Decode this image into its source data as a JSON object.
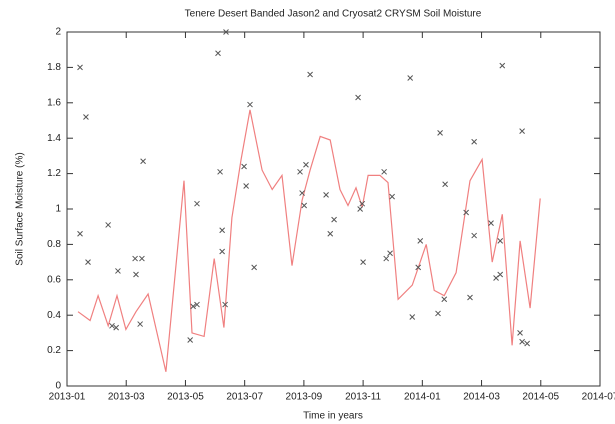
{
  "chart_data": {
    "type": "line",
    "title": "Tenere Desert Banded Jason2 and Cryosat2 CRYSM Soil Moisture",
    "x_label": "Time in years",
    "y_label": "Soil Surface Moisture (%)",
    "xlim": [
      0,
      18
    ],
    "ylim": [
      0,
      2
    ],
    "xticks": [
      {
        "value": 0,
        "label": "2013-01"
      },
      {
        "value": 2,
        "label": "2013-03"
      },
      {
        "value": 4,
        "label": "2013-05"
      },
      {
        "value": 6,
        "label": "2013-07"
      },
      {
        "value": 8,
        "label": "2013-09"
      },
      {
        "value": 10,
        "label": "2013-11"
      },
      {
        "value": 12,
        "label": "2014-01"
      },
      {
        "value": 14,
        "label": "2014-03"
      },
      {
        "value": 16,
        "label": "2014-05"
      },
      {
        "value": 18,
        "label": "2014-07"
      }
    ],
    "yticks": [
      0,
      0.2,
      0.4,
      0.6,
      0.8,
      1,
      1.2,
      1.4,
      1.6,
      1.8,
      2
    ],
    "grid": false,
    "series": [
      {
        "mark": "line",
        "color": "#f08080",
        "x": [
          0.37,
          0.78,
          1.05,
          1.39,
          1.69,
          1.99,
          2.33,
          2.74,
          3.34,
          3.95,
          4.22,
          4.63,
          4.97,
          5.3,
          5.57,
          5.88,
          6.18,
          6.59,
          6.93,
          7.26,
          7.6,
          7.94,
          8.21,
          8.55,
          8.89,
          9.22,
          9.49,
          9.76,
          9.97,
          10.17,
          10.57,
          10.84,
          11.18,
          11.66,
          12.13,
          12.4,
          12.74,
          13.14,
          13.61,
          14.02,
          14.36,
          14.7,
          15.03,
          15.3,
          15.64,
          15.98
        ],
        "values": [
          0.42,
          0.37,
          0.51,
          0.34,
          0.51,
          0.32,
          0.42,
          0.52,
          0.08,
          1.16,
          0.3,
          0.28,
          0.72,
          0.33,
          0.95,
          1.28,
          1.56,
          1.22,
          1.11,
          1.19,
          0.68,
          1.05,
          1.22,
          1.41,
          1.39,
          1.11,
          1.02,
          1.12,
          1.01,
          1.19,
          1.19,
          1.15,
          0.49,
          0.57,
          0.8,
          0.54,
          0.51,
          0.64,
          1.16,
          1.28,
          0.7,
          0.97,
          0.23,
          0.82,
          0.44,
          1.06
        ]
      },
      {
        "mark": "cross",
        "color": "#555555",
        "x": [
          0.44,
          0.64,
          0.44,
          0.71,
          1.39,
          1.52,
          1.66,
          1.72,
          2.33,
          2.3,
          2.53,
          2.57,
          2.47,
          4.16,
          4.26,
          4.39,
          4.39,
          5.1,
          5.17,
          5.24,
          5.24,
          5.37,
          5.34,
          5.98,
          6.05,
          6.18,
          6.32,
          7.87,
          7.94,
          8.01,
          8.07,
          8.21,
          8.75,
          8.89,
          9.02,
          9.83,
          9.9,
          9.97,
          10.0,
          10.71,
          10.78,
          10.91,
          10.98,
          11.59,
          11.66,
          11.86,
          11.93,
          12.53,
          12.6,
          12.77,
          12.74,
          13.48,
          13.61,
          13.75,
          13.75,
          14.32,
          14.49,
          14.63,
          14.63,
          14.7,
          15.3,
          15.37,
          15.54,
          15.37
        ],
        "values": [
          1.8,
          1.52,
          0.86,
          0.7,
          0.91,
          0.34,
          0.33,
          0.65,
          0.63,
          0.72,
          0.72,
          1.27,
          0.35,
          0.26,
          0.45,
          0.46,
          1.03,
          1.88,
          1.21,
          0.88,
          0.76,
          2.0,
          0.46,
          1.24,
          1.13,
          1.59,
          0.67,
          1.21,
          1.09,
          1.02,
          1.25,
          1.76,
          1.08,
          0.86,
          0.94,
          1.63,
          1.0,
          1.03,
          0.7,
          1.21,
          0.72,
          0.75,
          1.07,
          1.74,
          0.39,
          0.67,
          0.82,
          0.41,
          1.43,
          1.14,
          0.49,
          0.98,
          0.5,
          0.85,
          1.38,
          0.92,
          0.61,
          0.63,
          0.82,
          1.81,
          0.3,
          1.44,
          0.24,
          0.25
        ]
      }
    ]
  }
}
